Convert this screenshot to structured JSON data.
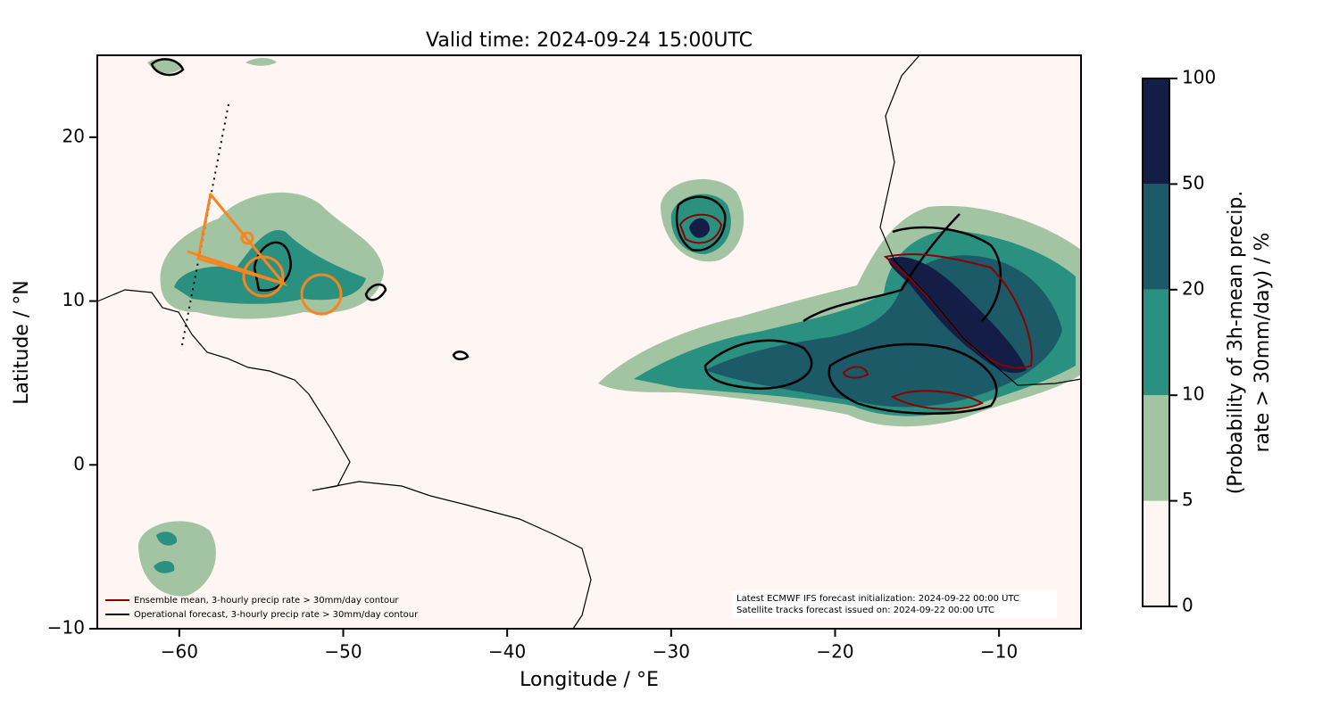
{
  "chart_data": {
    "type": "map",
    "title": "Valid time: 2024-09-24 15:00UTC",
    "xlabel": "Longitude / °E",
    "ylabel": "Latitude / °N",
    "xlim": [
      -65,
      -5
    ],
    "ylim": [
      -10,
      25
    ],
    "xticks": [
      {
        "value": -60,
        "label": "−60"
      },
      {
        "value": -50,
        "label": "−50"
      },
      {
        "value": -40,
        "label": "−40"
      },
      {
        "value": -30,
        "label": "−30"
      },
      {
        "value": -20,
        "label": "−20"
      },
      {
        "value": -10,
        "label": "−10"
      }
    ],
    "yticks": [
      {
        "value": -10,
        "label": "−10"
      },
      0,
      10,
      20
    ],
    "colorbar": {
      "label": [
        "(Probability of 3h-mean precip.",
        "rate > 30mm/day) / %"
      ],
      "ticks": [
        0,
        5,
        10,
        20,
        50,
        100
      ],
      "colors": [
        "#fff5f3",
        "#a3c4a3",
        "#2a9080",
        "#1c5a68",
        "#141d45"
      ]
    },
    "legend": [
      {
        "name": "Ensemble mean, 3-hourly precip rate > 30mm/day contour",
        "color": "#8b0000"
      },
      {
        "name": "Operational forecast, 3-hourly precip rate > 30mm/day contour",
        "color": "#000000"
      }
    ],
    "annotation": [
      "Latest ECMWF IFS forecast initialization: 2024-09-22 00:00 UTC",
      "Satellite tracks forecast issued on: 2024-09-22 00:00 UTC"
    ]
  }
}
